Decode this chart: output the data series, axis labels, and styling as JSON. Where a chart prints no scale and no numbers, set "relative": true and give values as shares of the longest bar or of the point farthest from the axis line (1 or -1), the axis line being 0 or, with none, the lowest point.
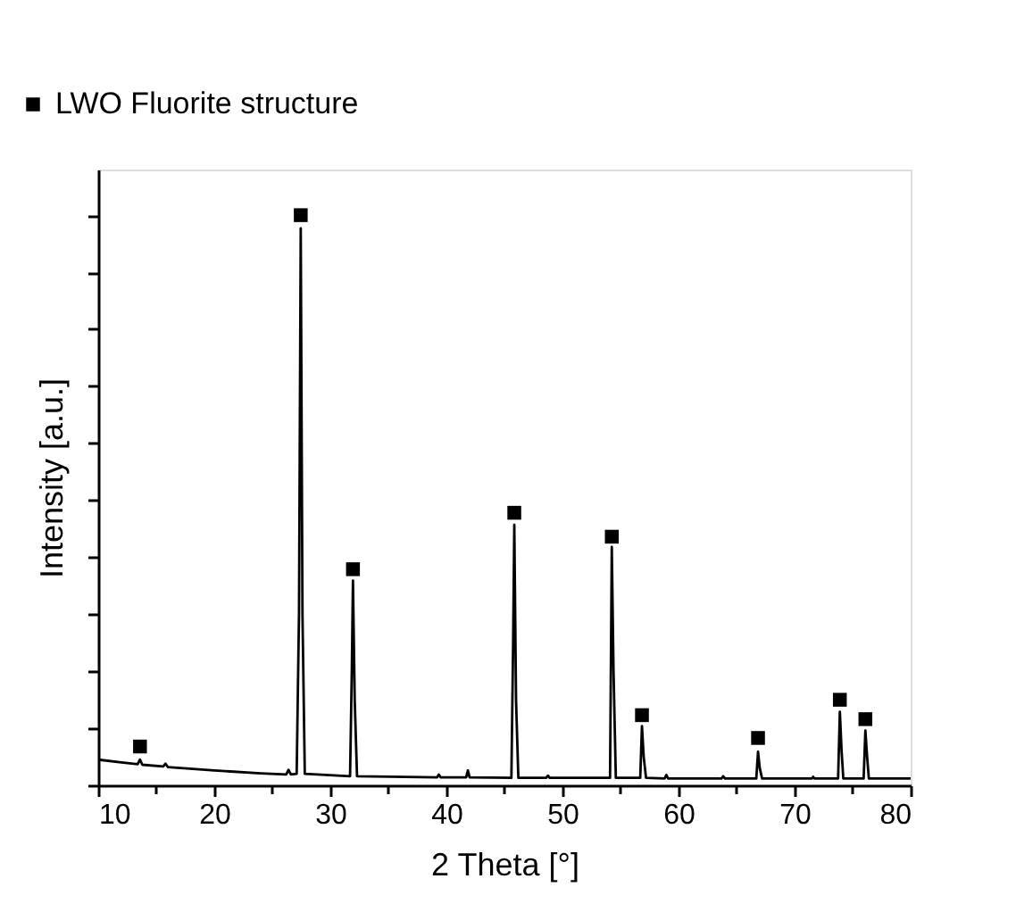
{
  "chart_data": {
    "type": "line",
    "relative": true,
    "xlabel": "2 Theta [°]",
    "ylabel": "Intensity [a.u.]",
    "xlim": [
      10,
      80
    ],
    "xticks": [
      10,
      {
        "value": 15,
        "label": null
      },
      20,
      {
        "value": 25,
        "label": null
      },
      30,
      {
        "value": 35,
        "label": null
      },
      40,
      {
        "value": 45,
        "label": null
      },
      50,
      {
        "value": 55,
        "label": null
      },
      60,
      {
        "value": 65,
        "label": null
      },
      70,
      {
        "value": 75,
        "label": null
      },
      80
    ],
    "tick_labels": "x",
    "grid": false,
    "legend": "top left",
    "series": [
      {
        "color": "#000000",
        "line_style": "solid",
        "marker": "none",
        "x": [
          10,
          12,
          13.4,
          13.6,
          13.8,
          15.6,
          15.8,
          16.0,
          20,
          24,
          26.2,
          26.4,
          26.6,
          27.1,
          27.3,
          27.45,
          27.6,
          27.8,
          31.7,
          31.85,
          31.95,
          32.1,
          32.3,
          39.2,
          39.35,
          39.5,
          41.7,
          41.85,
          42.0,
          45.6,
          45.75,
          45.85,
          46.0,
          46.2,
          48.6,
          48.75,
          48.9,
          54.1,
          54.25,
          54.4,
          54.6,
          56.7,
          56.85,
          57.0,
          57.2,
          58.8,
          58.95,
          59.1,
          63.7,
          63.85,
          64,
          66.7,
          66.85,
          67.0,
          67.2,
          71.5,
          71.6,
          71.7,
          73.75,
          73.9,
          74.05,
          74.2,
          75.95,
          76.1,
          76.25,
          76.4,
          80
        ],
        "values": [
          0.045,
          0.04,
          0.037,
          0.045,
          0.036,
          0.033,
          0.038,
          0.032,
          0.026,
          0.021,
          0.019,
          0.027,
          0.019,
          0.02,
          0.3,
          0.977,
          0.3,
          0.02,
          0.016,
          0.2,
          0.359,
          0.15,
          0.016,
          0.014,
          0.019,
          0.014,
          0.014,
          0.026,
          0.014,
          0.013,
          0.25,
          0.457,
          0.15,
          0.013,
          0.013,
          0.017,
          0.013,
          0.013,
          0.418,
          0.2,
          0.013,
          0.013,
          0.104,
          0.05,
          0.013,
          0.012,
          0.018,
          0.012,
          0.012,
          0.016,
          0.012,
          0.012,
          0.059,
          0.03,
          0.012,
          0.012,
          0.015,
          0.012,
          0.012,
          0.129,
          0.06,
          0.012,
          0.012,
          0.096,
          0.05,
          0.012,
          0.012
        ]
      },
      {
        "type": "scatter",
        "name": "LWO Fluorite structure",
        "color": "#000000",
        "marker": "square",
        "x": [
          13.6,
          27.45,
          31.95,
          45.85,
          54.25,
          56.85,
          66.85,
          73.9,
          76.1
        ],
        "values": [
          0.068,
          1,
          0.379,
          0.478,
          0.436,
          0.123,
          0.083,
          0.15,
          0.116
        ]
      }
    ]
  }
}
